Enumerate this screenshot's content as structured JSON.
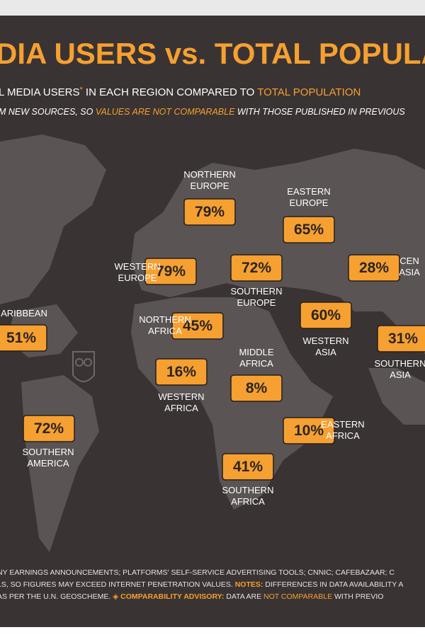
{
  "header": {
    "title": "DIA USERS vs. TOTAL POPULA",
    "subtitle": [
      "L MEDIA USERS",
      "*",
      " IN EACH REGION COMPARED TO ",
      "TOTAL POPULATION"
    ],
    "note": [
      "M NEW SOURCES, SO ",
      "VALUES ARE NOT COMPARABLE",
      " WITH THOSE PUBLISHED IN PREVIOUS"
    ]
  },
  "regions": [
    {
      "name": [
        "NORTHERN",
        "EUROPE"
      ],
      "value": "79%"
    },
    {
      "name": [
        "EASTERN",
        "EUROPE"
      ],
      "value": "65%"
    },
    {
      "name": [
        "WESTERN",
        "EUROPE"
      ],
      "value": "79%"
    },
    {
      "name": [
        "SOUTHERN",
        "EUROPE"
      ],
      "value": "72%"
    },
    {
      "name": [
        "CEN",
        "ASIA"
      ],
      "value": "28%"
    },
    {
      "name": [
        "ARIBBEAN"
      ],
      "value": "51%"
    },
    {
      "name": [
        "NORTHERN",
        "AFRICA"
      ],
      "value": "45%"
    },
    {
      "name": [
        "WESTERN",
        "ASIA"
      ],
      "value": "60%"
    },
    {
      "name": [
        "SOUTHERN",
        "ASIA"
      ],
      "value": "31%"
    },
    {
      "name": [
        "WESTERN",
        "AFRICA"
      ],
      "value": "16%"
    },
    {
      "name": [
        "MIDDLE",
        "AFRICA"
      ],
      "value": "8%"
    },
    {
      "name": [
        "SOUTHERN",
        "AMERICA"
      ],
      "value": "72%"
    },
    {
      "name": [
        "EASTERN",
        "AFRICA"
      ],
      "value": "10%"
    },
    {
      "name": [
        "SOUTHERN",
        "AFRICA"
      ],
      "value": "41%"
    }
  ],
  "footer": {
    "line1": [
      "NY EARNINGS ANNOUNCEMENTS; PLATFORMS' SELF-SERVICE ADVERTISING TOOLS; CNNIC; CAFEBAZAAR; C"
    ],
    "line2": [
      "LS, SO FIGURES MAY EXCEED INTERNET PENETRATION VALUES. ",
      "NOTES:",
      " DIFFERENCES IN DATA AVAILABILITY A"
    ],
    "line3": [
      "AS PER THE U.N. GEOSCHEME. ",
      "◈ COMPARABILITY ADVISORY:",
      " DATA ARE ",
      "NOT COMPARABLE",
      " WITH PREVIO"
    ]
  }
}
